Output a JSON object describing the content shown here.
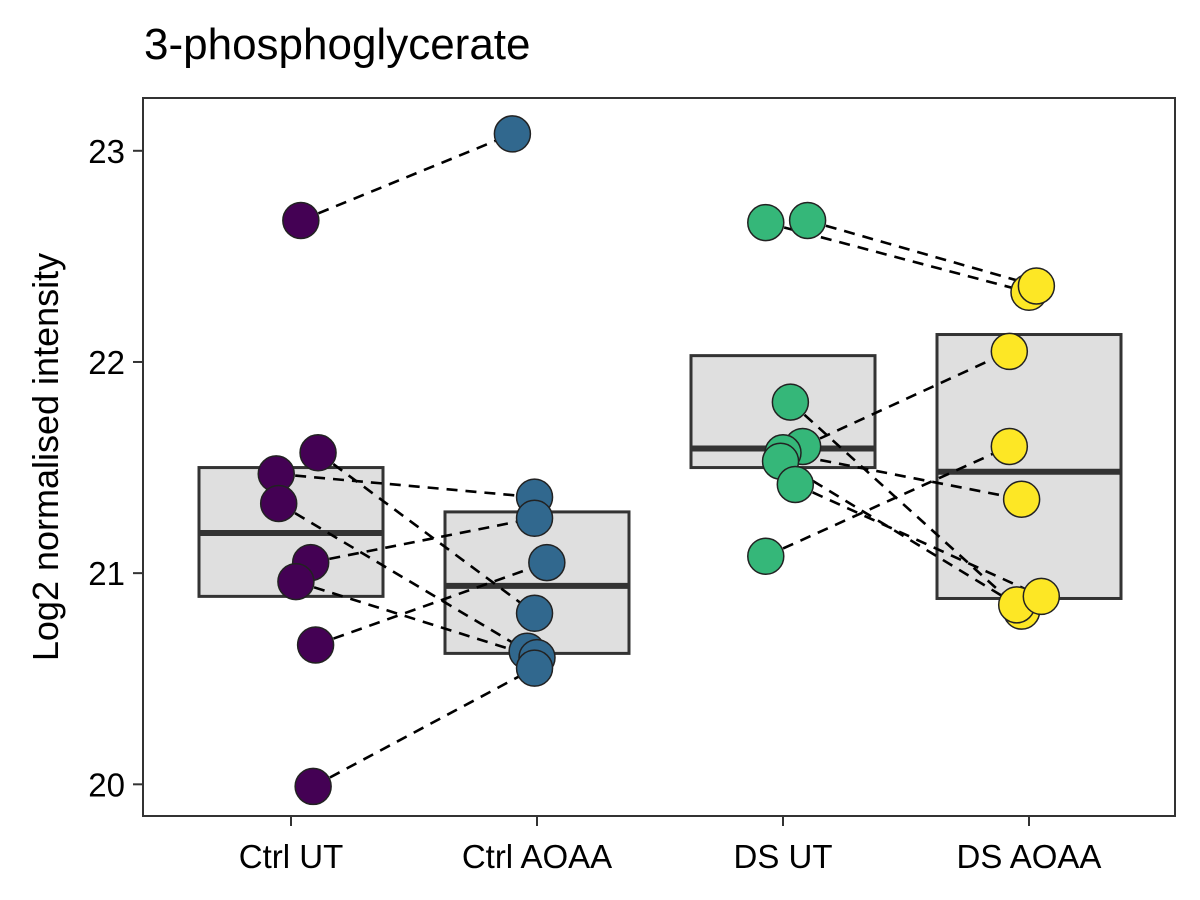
{
  "chart_data": {
    "type": "box-dot-paired",
    "title": "3-phosphoglycerate",
    "xlabel": "",
    "ylabel": "Log2 normalised intensity",
    "ylim": [
      19.85,
      23.25
    ],
    "yticks": [
      20,
      21,
      22,
      23
    ],
    "grid": false,
    "legend": "none",
    "categories": [
      "Ctrl UT",
      "Ctrl AOAA",
      "DS UT",
      "DS AOAA"
    ],
    "colors": [
      "#440154",
      "#31688e",
      "#35b779",
      "#fde725"
    ],
    "box_fill": "#dfdfdf",
    "box_stroke": "#333333",
    "boxes": [
      {
        "lower": 20.89,
        "median": 21.19,
        "upper": 21.5
      },
      {
        "lower": 20.62,
        "median": 20.94,
        "upper": 21.29
      },
      {
        "lower": 21.5,
        "median": 21.59,
        "upper": 22.03
      },
      {
        "lower": 20.88,
        "median": 21.48,
        "upper": 22.13
      }
    ],
    "groups": [
      {
        "name": "Ctrl UT",
        "points": [
          {
            "jitter": 0.04,
            "y": 22.67
          },
          {
            "jitter": 0.11,
            "y": 21.57
          },
          {
            "jitter": -0.06,
            "y": 21.47
          },
          {
            "jitter": -0.05,
            "y": 21.33
          },
          {
            "jitter": 0.08,
            "y": 21.05
          },
          {
            "jitter": 0.02,
            "y": 20.96
          },
          {
            "jitter": 0.1,
            "y": 20.66
          },
          {
            "jitter": 0.09,
            "y": 19.99
          }
        ]
      },
      {
        "name": "Ctrl AOAA",
        "points": [
          {
            "jitter": -0.1,
            "y": 23.08
          },
          {
            "jitter": -0.01,
            "y": 21.36
          },
          {
            "jitter": -0.01,
            "y": 21.26
          },
          {
            "jitter": 0.04,
            "y": 21.05
          },
          {
            "jitter": -0.01,
            "y": 20.81
          },
          {
            "jitter": -0.04,
            "y": 20.63
          },
          {
            "jitter": 0.0,
            "y": 20.6
          },
          {
            "jitter": -0.01,
            "y": 20.55
          }
        ]
      },
      {
        "name": "DS UT",
        "points": [
          {
            "jitter": -0.07,
            "y": 22.66
          },
          {
            "jitter": 0.1,
            "y": 22.67
          },
          {
            "jitter": 0.03,
            "y": 21.81
          },
          {
            "jitter": 0.08,
            "y": 21.6
          },
          {
            "jitter": 0.0,
            "y": 21.57
          },
          {
            "jitter": -0.01,
            "y": 21.53
          },
          {
            "jitter": 0.05,
            "y": 21.42
          },
          {
            "jitter": -0.07,
            "y": 21.08
          }
        ]
      },
      {
        "name": "DS AOAA",
        "points": [
          {
            "jitter": 0.0,
            "y": 22.33
          },
          {
            "jitter": 0.03,
            "y": 22.36
          },
          {
            "jitter": -0.08,
            "y": 22.05
          },
          {
            "jitter": -0.08,
            "y": 21.6
          },
          {
            "jitter": -0.03,
            "y": 21.35
          },
          {
            "jitter": -0.03,
            "y": 20.82
          },
          {
            "jitter": -0.05,
            "y": 20.85
          },
          {
            "jitter": 0.05,
            "y": 20.89
          }
        ]
      }
    ],
    "pairs": [
      {
        "from_group": 0,
        "from_y": 22.67,
        "to_group": 1,
        "to_y": 23.08
      },
      {
        "from_group": 0,
        "from_y": 21.47,
        "to_group": 1,
        "to_y": 21.36
      },
      {
        "from_group": 0,
        "from_y": 21.33,
        "to_group": 1,
        "to_y": 20.63
      },
      {
        "from_group": 0,
        "from_y": 21.57,
        "to_group": 1,
        "to_y": 20.81
      },
      {
        "from_group": 0,
        "from_y": 21.05,
        "to_group": 1,
        "to_y": 21.26
      },
      {
        "from_group": 0,
        "from_y": 20.96,
        "to_group": 1,
        "to_y": 20.6
      },
      {
        "from_group": 0,
        "from_y": 20.66,
        "to_group": 1,
        "to_y": 21.05
      },
      {
        "from_group": 0,
        "from_y": 19.99,
        "to_group": 1,
        "to_y": 20.55
      },
      {
        "from_group": 2,
        "from_y": 22.66,
        "to_group": 3,
        "to_y": 22.33
      },
      {
        "from_group": 2,
        "from_y": 22.67,
        "to_group": 3,
        "to_y": 22.36
      },
      {
        "from_group": 2,
        "from_y": 21.81,
        "to_group": 3,
        "to_y": 20.82
      },
      {
        "from_group": 2,
        "from_y": 21.6,
        "to_group": 3,
        "to_y": 22.05
      },
      {
        "from_group": 2,
        "from_y": 21.57,
        "to_group": 3,
        "to_y": 21.35
      },
      {
        "from_group": 2,
        "from_y": 21.53,
        "to_group": 3,
        "to_y": 20.85
      },
      {
        "from_group": 2,
        "from_y": 21.42,
        "to_group": 3,
        "to_y": 20.89
      },
      {
        "from_group": 2,
        "from_y": 21.08,
        "to_group": 3,
        "to_y": 21.6
      }
    ]
  }
}
